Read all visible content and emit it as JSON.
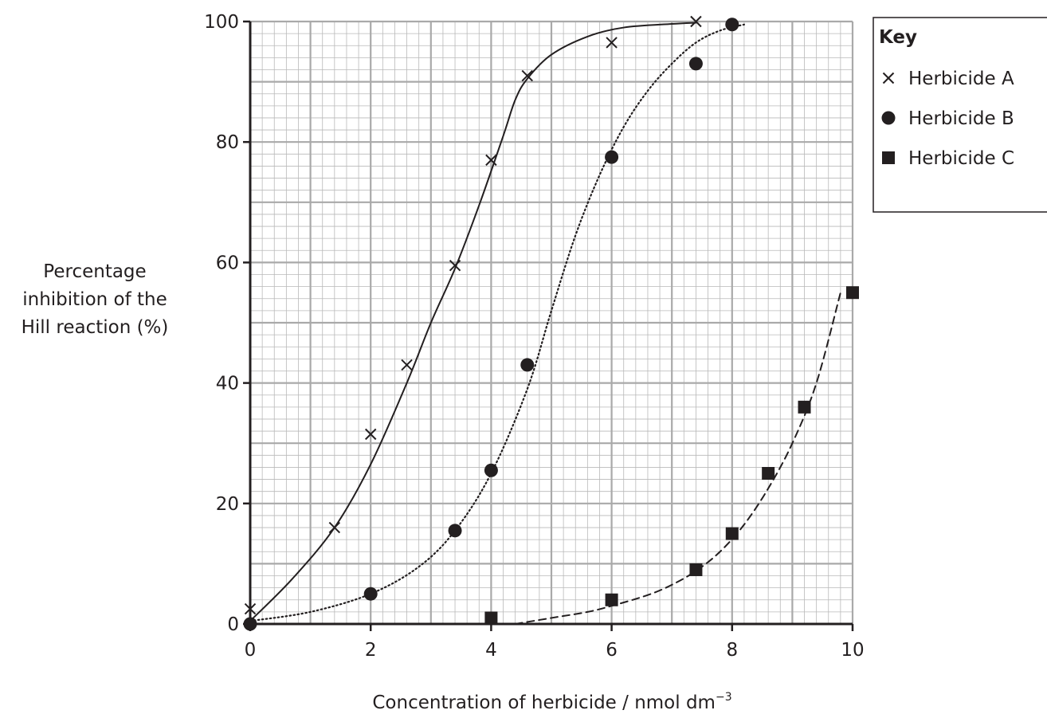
{
  "chart_data": {
    "type": "scatter",
    "xlabel_main": "Concentration of herbicide / nmol dm",
    "xlabel_sup": "−3",
    "ylabel_lines": [
      "Percentage",
      "inhibition of the",
      "Hill reaction (%)"
    ],
    "xlim": [
      0,
      10
    ],
    "ylim": [
      0,
      100
    ],
    "x_ticks": [
      0,
      2,
      4,
      6,
      8,
      10
    ],
    "y_ticks": [
      0,
      20,
      40,
      60,
      80,
      100
    ],
    "x_tick_labels": [
      "0",
      "2",
      "4",
      "6",
      "8",
      "10"
    ],
    "y_tick_labels": [
      "0",
      "20",
      "40",
      "60",
      "80",
      "100"
    ],
    "grid": {
      "major_x": 1,
      "major_y": 10,
      "minor_x": 0.2,
      "minor_y": 2
    },
    "legend": {
      "title": "Key",
      "position": "top-right"
    },
    "series": [
      {
        "name": "Herbicide A",
        "marker": "cross",
        "line_style": "solid",
        "points": [
          [
            0,
            2.5
          ],
          [
            1.4,
            16
          ],
          [
            2,
            31.5
          ],
          [
            2.6,
            43
          ],
          [
            3.4,
            59.5
          ],
          [
            4,
            77
          ],
          [
            4.6,
            91
          ],
          [
            6,
            96.5
          ],
          [
            7.4,
            100
          ]
        ],
        "curve": [
          [
            0,
            0.5
          ],
          [
            0.7,
            7.5
          ],
          [
            1.4,
            16
          ],
          [
            2,
            26.5
          ],
          [
            2.6,
            40
          ],
          [
            3,
            50
          ],
          [
            3.4,
            59
          ],
          [
            3.8,
            69.5
          ],
          [
            4.2,
            81
          ],
          [
            4.4,
            87
          ],
          [
            4.6,
            90.5
          ],
          [
            5,
            94.5
          ],
          [
            5.6,
            97.5
          ],
          [
            6.2,
            99
          ],
          [
            7,
            99.6
          ],
          [
            7.4,
            99.8
          ]
        ]
      },
      {
        "name": "Herbicide B",
        "marker": "circle",
        "line_style": "dotted",
        "points": [
          [
            0,
            0
          ],
          [
            2,
            5
          ],
          [
            3.4,
            15.5
          ],
          [
            4,
            25.5
          ],
          [
            4.6,
            43
          ],
          [
            6,
            77.5
          ],
          [
            7.4,
            93
          ],
          [
            8,
            99.5
          ]
        ],
        "curve": [
          [
            0,
            0.5
          ],
          [
            1,
            2
          ],
          [
            2,
            5
          ],
          [
            2.8,
            9.5
          ],
          [
            3.4,
            15.5
          ],
          [
            4,
            25
          ],
          [
            4.6,
            39
          ],
          [
            5,
            52
          ],
          [
            5.4,
            64.5
          ],
          [
            5.8,
            74.5
          ],
          [
            6.2,
            82.5
          ],
          [
            6.6,
            88.5
          ],
          [
            7,
            93
          ],
          [
            7.4,
            96.5
          ],
          [
            7.8,
            98.5
          ],
          [
            8.2,
            99.5
          ]
        ]
      },
      {
        "name": "Herbicide C",
        "marker": "square",
        "line_style": "dashed",
        "points": [
          [
            4,
            1
          ],
          [
            6,
            4
          ],
          [
            7.4,
            9
          ],
          [
            8,
            15
          ],
          [
            8.6,
            25
          ],
          [
            9.2,
            36
          ],
          [
            10,
            55
          ]
        ],
        "curve": [
          [
            4.4,
            0
          ],
          [
            5,
            1
          ],
          [
            5.6,
            2
          ],
          [
            6,
            3
          ],
          [
            6.6,
            4.8
          ],
          [
            7,
            6.5
          ],
          [
            7.4,
            8.8
          ],
          [
            7.8,
            12
          ],
          [
            8.2,
            16.5
          ],
          [
            8.6,
            22.5
          ],
          [
            9,
            30
          ],
          [
            9.4,
            40
          ],
          [
            9.8,
            55
          ]
        ]
      }
    ]
  }
}
